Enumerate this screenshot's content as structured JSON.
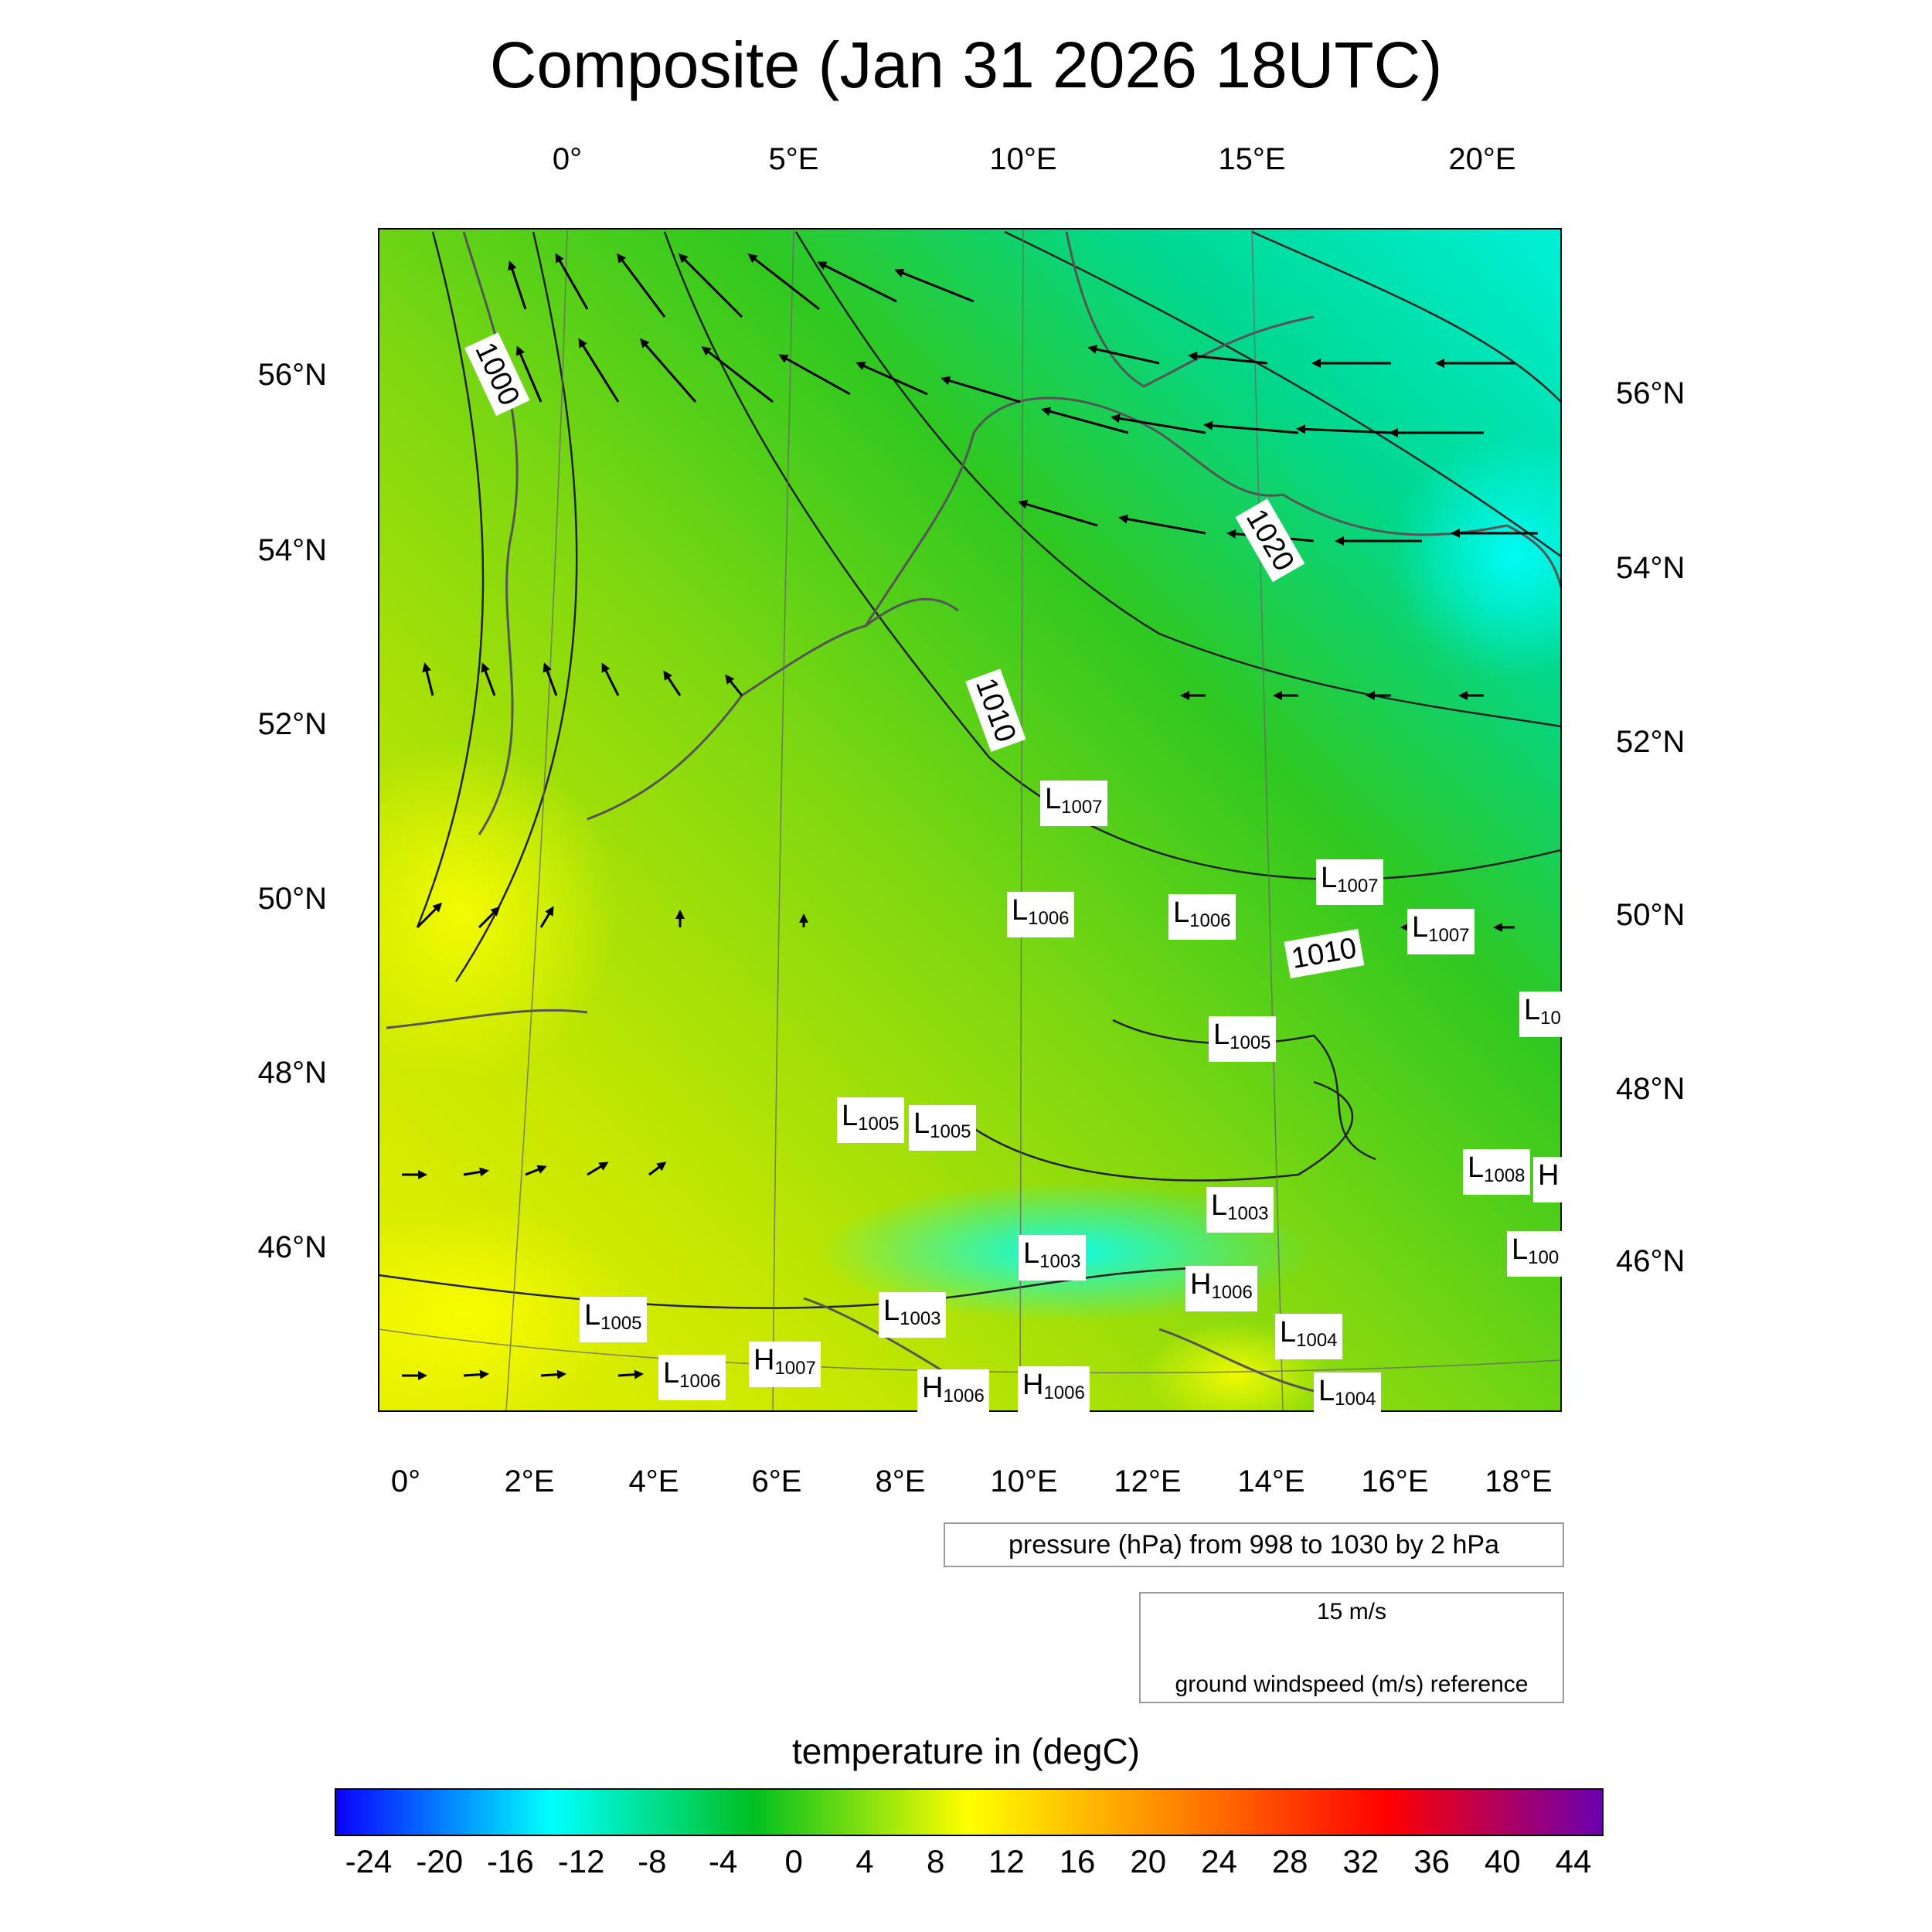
{
  "title": "Composite (Jan 31 2026 18UTC)",
  "top_lon_labels": [
    "0°",
    "5°E",
    "10°E",
    "15°E",
    "20°E"
  ],
  "bottom_lon_labels": [
    "0°",
    "2°E",
    "4°E",
    "6°E",
    "8°E",
    "10°E",
    "12°E",
    "14°E",
    "16°E",
    "18°E"
  ],
  "left_lat_labels": [
    "56°N",
    "54°N",
    "52°N",
    "50°N",
    "48°N",
    "46°N"
  ],
  "right_lat_labels": [
    "56°N",
    "54°N",
    "52°N",
    "50°N",
    "48°N",
    "46°N"
  ],
  "isobar_labels": [
    "1000",
    "1010",
    "1020",
    "1010"
  ],
  "pressure_note": "pressure (hPa) from 998 to 1030 by 2 hPa",
  "wind_reference": {
    "speed": "15 m/s",
    "caption": "ground windspeed (m/s) reference"
  },
  "colorbar": {
    "title": "temperature in (degC)",
    "ticks": [
      "-24",
      "-20",
      "-16",
      "-12",
      "-8",
      "-4",
      "0",
      "4",
      "8",
      "12",
      "16",
      "20",
      "24",
      "28",
      "32",
      "36",
      "40",
      "44"
    ],
    "colors": {
      "min": "#0a00ff",
      "cyan": "#00ffff",
      "green": "#00c020",
      "yellow": "#ffff00",
      "orange": "#ff8000",
      "red": "#ff0000",
      "max": "#6a00b0"
    }
  },
  "pressure_centers": [
    {
      "type": "L",
      "value": "1007"
    },
    {
      "type": "L",
      "value": "1007"
    },
    {
      "type": "L",
      "value": "1006"
    },
    {
      "type": "L",
      "value": "1006"
    },
    {
      "type": "L",
      "value": "1007"
    },
    {
      "type": "L",
      "value": "10"
    },
    {
      "type": "L",
      "value": "1005"
    },
    {
      "type": "L",
      "value": "1005"
    },
    {
      "type": "L",
      "value": "1005"
    },
    {
      "type": "L",
      "value": "1008"
    },
    {
      "type": "H",
      "value": ""
    },
    {
      "type": "L",
      "value": "1003"
    },
    {
      "type": "L",
      "value": "1003"
    },
    {
      "type": "L",
      "value": "100"
    },
    {
      "type": "H",
      "value": "1006"
    },
    {
      "type": "L",
      "value": "1005"
    },
    {
      "type": "L",
      "value": "1003"
    },
    {
      "type": "L",
      "value": "1004"
    },
    {
      "type": "H",
      "value": "1007"
    },
    {
      "type": "L",
      "value": "1006"
    },
    {
      "type": "H",
      "value": "1006"
    },
    {
      "type": "H",
      "value": "1006"
    },
    {
      "type": "L",
      "value": "1004"
    }
  ]
}
